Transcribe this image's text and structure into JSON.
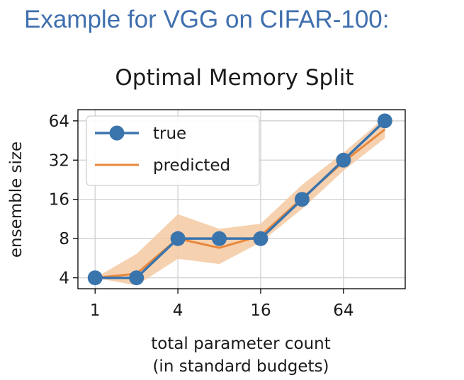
{
  "heading": "Example for VGG on CIFAR-100:",
  "colors": {
    "true": "#3a74ad",
    "predicted": "#e8883c",
    "band": "#f4c9a2",
    "heading": "#3f6fae"
  },
  "chart_data": {
    "type": "line",
    "title": "Optimal Memory Split",
    "xlabel": "total parameter count",
    "xlabel_line2": "(in standard budgets)",
    "ylabel": "ensemble size",
    "x_scale": "log2",
    "y_scale": "log2",
    "xlim": [
      0.75,
      180
    ],
    "ylim": [
      3.3,
      78
    ],
    "x_ticks": [
      1,
      4,
      16,
      64
    ],
    "x_tick_labels": [
      "1",
      "4",
      "16",
      "64"
    ],
    "y_ticks": [
      4,
      8,
      16,
      32,
      64
    ],
    "y_tick_labels": [
      "4",
      "8",
      "16",
      "32",
      "64"
    ],
    "grid": true,
    "legend_position": "top-left",
    "series": [
      {
        "name": "true",
        "x": [
          1,
          2,
          4,
          8,
          16,
          32,
          64,
          128
        ],
        "y": [
          4,
          4,
          8,
          8,
          8,
          16,
          32,
          64
        ],
        "markers": true
      },
      {
        "name": "predicted",
        "x": [
          1,
          2,
          4,
          8,
          16,
          32,
          64,
          128
        ],
        "y": [
          4,
          4.3,
          8,
          6.8,
          8.4,
          16.3,
          31,
          55
        ],
        "band_low": [
          4,
          3.5,
          5.6,
          5.1,
          7.5,
          13.5,
          26.5,
          47
        ],
        "band_high": [
          4,
          6.1,
          12.3,
          9.5,
          10.4,
          20.7,
          36.5,
          68
        ]
      }
    ]
  }
}
